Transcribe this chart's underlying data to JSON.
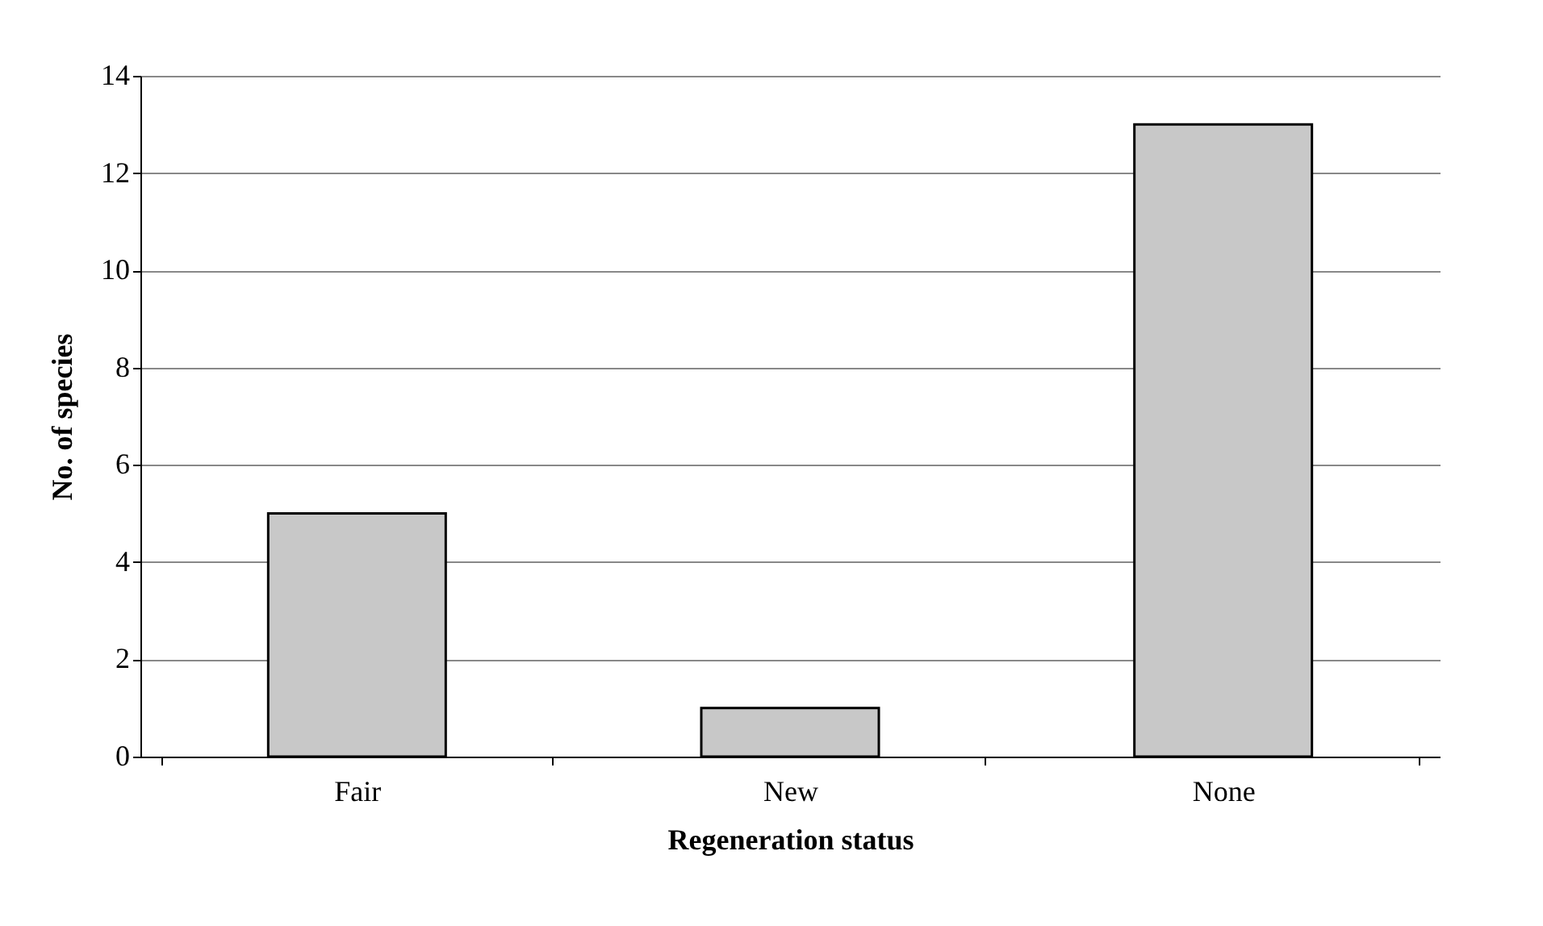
{
  "chart_data": {
    "type": "bar",
    "xlabel": "Regeneration status",
    "ylabel": "No. of species",
    "categories": [
      "Fair",
      "New",
      "None"
    ],
    "values": [
      5,
      1,
      13
    ],
    "color": "#c8c8c8",
    "ylim": [
      0,
      14
    ],
    "yticks": [
      0,
      2,
      4,
      6,
      8,
      10,
      12,
      14
    ],
    "grid": "y"
  }
}
